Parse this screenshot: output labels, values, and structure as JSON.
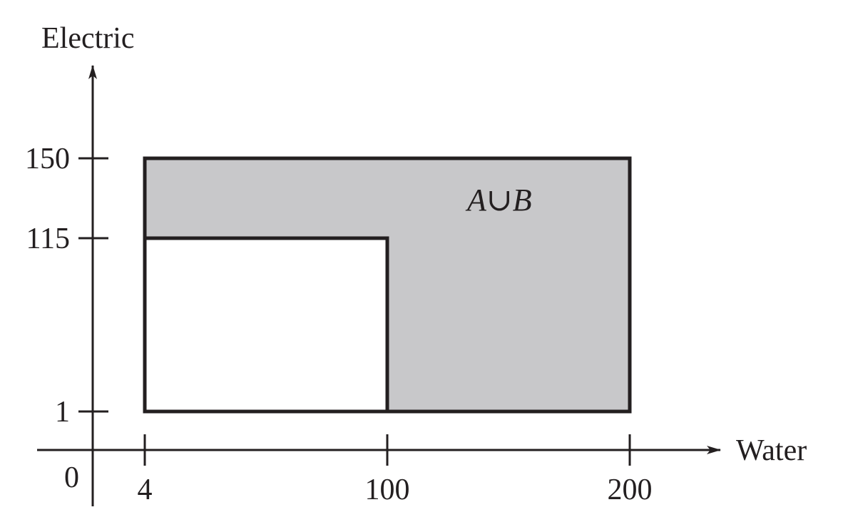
{
  "figure": {
    "x_axis_label": "Water",
    "y_axis_label": "Electric",
    "origin_label": "0",
    "region_label": "A∪B"
  },
  "chart_data": {
    "type": "region-diagram",
    "xlabel": "Water",
    "ylabel": "Electric",
    "x_ticks": [
      4,
      100,
      200
    ],
    "y_ticks": [
      1,
      115,
      150
    ],
    "x_tick_labels": [
      "4",
      "100",
      "200"
    ],
    "y_tick_labels": [
      "1",
      "115",
      "150"
    ],
    "regions": [
      {
        "name": "A∪B",
        "x_range": [
          4,
          200
        ],
        "y_range": [
          1,
          150
        ],
        "fill": "#c8c8ca",
        "shaded": true
      },
      {
        "x_range": [
          4,
          100
        ],
        "y_range": [
          1,
          115
        ],
        "fill": "#ffffff",
        "shaded": false
      }
    ]
  },
  "colors": {
    "shade": "#c8c8ca",
    "ink": "#231f20",
    "background": "#ffffff"
  }
}
